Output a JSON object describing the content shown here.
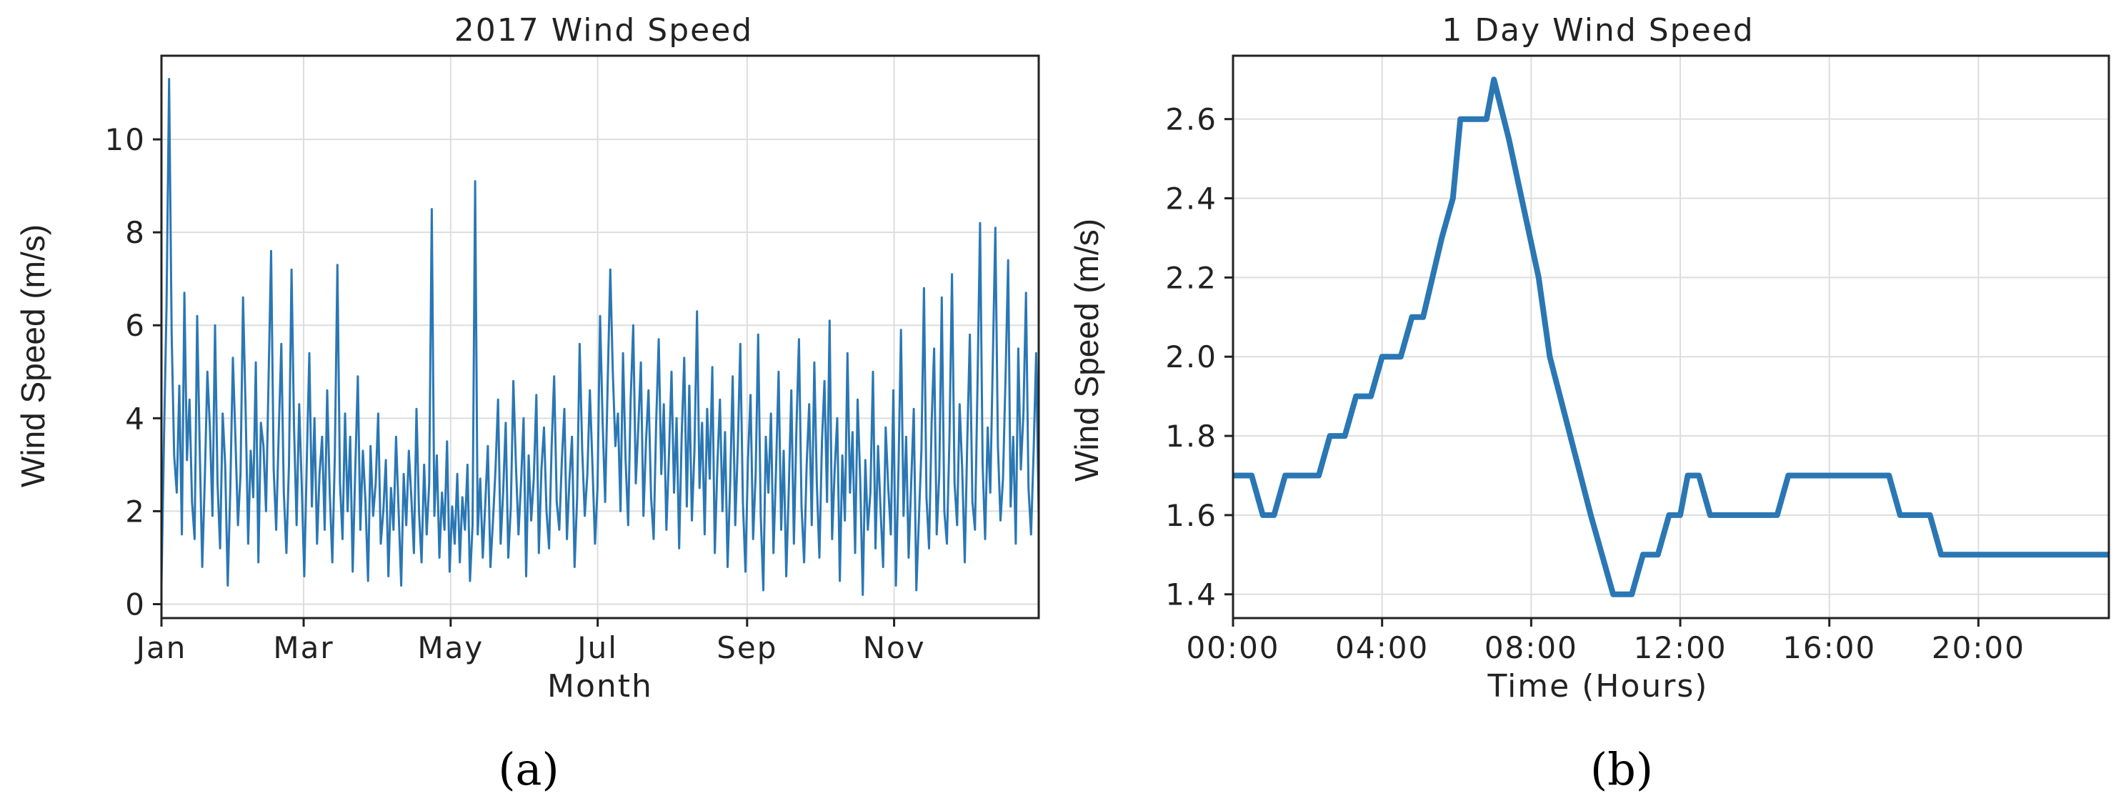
{
  "colors": {
    "series": "#2a77b4",
    "grid": "#dddddd",
    "axis": "#222222"
  },
  "chart_data": [
    {
      "type": "line",
      "panel_label": "(a)",
      "title": "2017 Wind Speed",
      "xlabel": "Month",
      "ylabel": "Wind Speed (m/s)",
      "x_ticks": [
        "Jan",
        "Mar",
        "May",
        "Jul",
        "Sep",
        "Nov"
      ],
      "x_tick_days": [
        0,
        59,
        120,
        181,
        243,
        304
      ],
      "xlim_days": [
        0,
        364
      ],
      "ylim": [
        -0.3,
        11.8
      ],
      "y_ticks": [
        0,
        2,
        4,
        6,
        8,
        10
      ],
      "grid": true,
      "series": [
        {
          "daily_values": [
            0.4,
            3.6,
            6.4,
            11.3,
            5.8,
            3.2,
            2.4,
            4.7,
            1.5,
            6.7,
            3.1,
            4.4,
            2.2,
            1.4,
            6.2,
            3.4,
            0.8,
            2.7,
            5.0,
            3.8,
            1.9,
            6.0,
            2.6,
            1.2,
            4.1,
            3.0,
            0.4,
            2.5,
            5.3,
            3.6,
            1.7,
            2.8,
            6.6,
            4.2,
            1.3,
            3.3,
            2.3,
            5.2,
            0.9,
            3.9,
            3.4,
            2.0,
            4.8,
            7.6,
            2.9,
            1.6,
            3.7,
            5.6,
            2.4,
            1.1,
            3.0,
            7.2,
            3.8,
            1.7,
            4.3,
            2.6,
            0.6,
            3.1,
            5.4,
            2.1,
            4.0,
            1.3,
            2.8,
            3.6,
            1.6,
            4.6,
            2.4,
            0.9,
            3.2,
            7.3,
            2.6,
            1.4,
            4.1,
            2.0,
            3.6,
            0.7,
            2.9,
            4.9,
            1.6,
            3.3,
            2.2,
            0.5,
            3.4,
            1.9,
            2.6,
            4.1,
            1.3,
            2.0,
            3.1,
            0.6,
            2.5,
            1.6,
            3.6,
            2.0,
            0.4,
            2.8,
            1.7,
            3.3,
            2.3,
            1.1,
            4.2,
            2.0,
            0.9,
            3.0,
            1.5,
            2.6,
            8.5,
            1.9,
            3.2,
            1.0,
            2.4,
            1.6,
            3.5,
            0.7,
            2.1,
            1.3,
            2.8,
            0.9,
            2.3,
            1.6,
            3.0,
            0.5,
            1.7,
            9.1,
            1.5,
            2.7,
            1.0,
            2.2,
            3.4,
            0.8,
            1.8,
            2.9,
            4.4,
            1.3,
            2.4,
            3.9,
            1.0,
            2.1,
            4.8,
            3.0,
            1.5,
            2.6,
            4.0,
            0.6,
            3.2,
            1.8,
            2.7,
            4.5,
            1.1,
            2.9,
            3.8,
            2.0,
            1.2,
            3.4,
            4.9,
            2.2,
            1.6,
            3.1,
            4.2,
            1.4,
            2.7,
            3.6,
            0.8,
            2.3,
            5.6,
            3.3,
            1.9,
            2.8,
            4.6,
            3.0,
            1.3,
            2.5,
            6.2,
            3.9,
            2.2,
            4.8,
            7.2,
            5.0,
            3.4,
            4.1,
            2.0,
            5.4,
            3.1,
            1.7,
            4.4,
            6.0,
            2.6,
            3.8,
            5.2,
            1.9,
            3.5,
            4.6,
            2.3,
            1.4,
            3.9,
            5.7,
            2.8,
            4.3,
            1.6,
            3.2,
            5.0,
            2.4,
            4.0,
            1.2,
            3.6,
            5.3,
            2.1,
            4.7,
            1.8,
            3.3,
            6.3,
            2.5,
            3.9,
            1.5,
            4.2,
            2.7,
            5.1,
            1.1,
            3.0,
            4.4,
            2.0,
            3.7,
            0.8,
            2.6,
            4.9,
            1.7,
            3.4,
            5.6,
            2.2,
            0.7,
            3.1,
            4.5,
            1.4,
            2.8,
            5.8,
            1.9,
            0.3,
            3.6,
            2.4,
            4.1,
            1.1,
            2.9,
            5.0,
            1.6,
            3.3,
            0.6,
            2.5,
            4.6,
            1.3,
            3.8,
            5.7,
            2.1,
            0.9,
            3.0,
            4.3,
            1.7,
            5.2,
            2.6,
            1.0,
            3.5,
            4.8,
            2.2,
            6.1,
            1.4,
            2.9,
            4.0,
            0.5,
            3.2,
            1.8,
            5.4,
            2.4,
            3.7,
            1.1,
            4.4,
            2.7,
            0.2,
            3.1,
            1.6,
            2.4,
            5.0,
            1.2,
            3.4,
            2.0,
            0.8,
            3.8,
            2.5,
            1.5,
            4.6,
            0.4,
            2.9,
            5.9,
            1.9,
            3.6,
            1.0,
            2.6,
            4.2,
            0.3,
            1.8,
            3.3,
            6.8,
            2.3,
            1.2,
            3.9,
            5.5,
            1.5,
            2.8,
            6.6,
            2.0,
            1.3,
            3.6,
            7.1,
            2.6,
            1.7,
            4.3,
            2.9,
            0.9,
            3.5,
            5.8,
            2.2,
            1.6,
            4.7,
            8.2,
            3.0,
            1.4,
            3.8,
            2.4,
            5.2,
            8.1,
            3.4,
            1.8,
            2.7,
            4.9,
            7.4,
            2.1,
            3.6,
            1.3,
            5.5,
            2.9,
            4.1,
            6.7,
            2.5,
            1.5,
            3.3,
            5.4,
            1.9
          ]
        }
      ]
    },
    {
      "type": "line",
      "panel_label": "(b)",
      "title": "1 Day Wind Speed",
      "xlabel": "Time (Hours)",
      "ylabel": "Wind Speed (m/s)",
      "x_ticks": [
        "00:00",
        "04:00",
        "08:00",
        "12:00",
        "16:00",
        "20:00"
      ],
      "x_tick_hours": [
        0,
        4,
        8,
        12,
        16,
        20
      ],
      "xlim_hours": [
        0,
        23.5
      ],
      "ylim": [
        1.34,
        2.76
      ],
      "y_ticks": [
        1.4,
        1.6,
        1.8,
        2.0,
        2.2,
        2.4,
        2.6
      ],
      "grid": true,
      "series": [
        {
          "points": [
            [
              0,
              1.7
            ],
            [
              0.5,
              1.7
            ],
            [
              0.8,
              1.6
            ],
            [
              1.1,
              1.6
            ],
            [
              1.4,
              1.7
            ],
            [
              2.3,
              1.7
            ],
            [
              2.6,
              1.8
            ],
            [
              3.0,
              1.8
            ],
            [
              3.3,
              1.9
            ],
            [
              3.7,
              1.9
            ],
            [
              4.0,
              2.0
            ],
            [
              4.5,
              2.0
            ],
            [
              4.8,
              2.1
            ],
            [
              5.1,
              2.1
            ],
            [
              5.6,
              2.3
            ],
            [
              5.9,
              2.4
            ],
            [
              6.1,
              2.6
            ],
            [
              6.8,
              2.6
            ],
            [
              7.0,
              2.7
            ],
            [
              7.4,
              2.55
            ],
            [
              8.2,
              2.2
            ],
            [
              8.5,
              2.0
            ],
            [
              9.6,
              1.6
            ],
            [
              10.2,
              1.4
            ],
            [
              10.7,
              1.4
            ],
            [
              11.0,
              1.5
            ],
            [
              11.4,
              1.5
            ],
            [
              11.7,
              1.6
            ],
            [
              12.0,
              1.6
            ],
            [
              12.2,
              1.7
            ],
            [
              12.5,
              1.7
            ],
            [
              12.8,
              1.6
            ],
            [
              14.6,
              1.6
            ],
            [
              14.9,
              1.7
            ],
            [
              17.6,
              1.7
            ],
            [
              17.9,
              1.6
            ],
            [
              18.7,
              1.6
            ],
            [
              19.0,
              1.5
            ],
            [
              23.5,
              1.5
            ]
          ]
        }
      ]
    }
  ]
}
